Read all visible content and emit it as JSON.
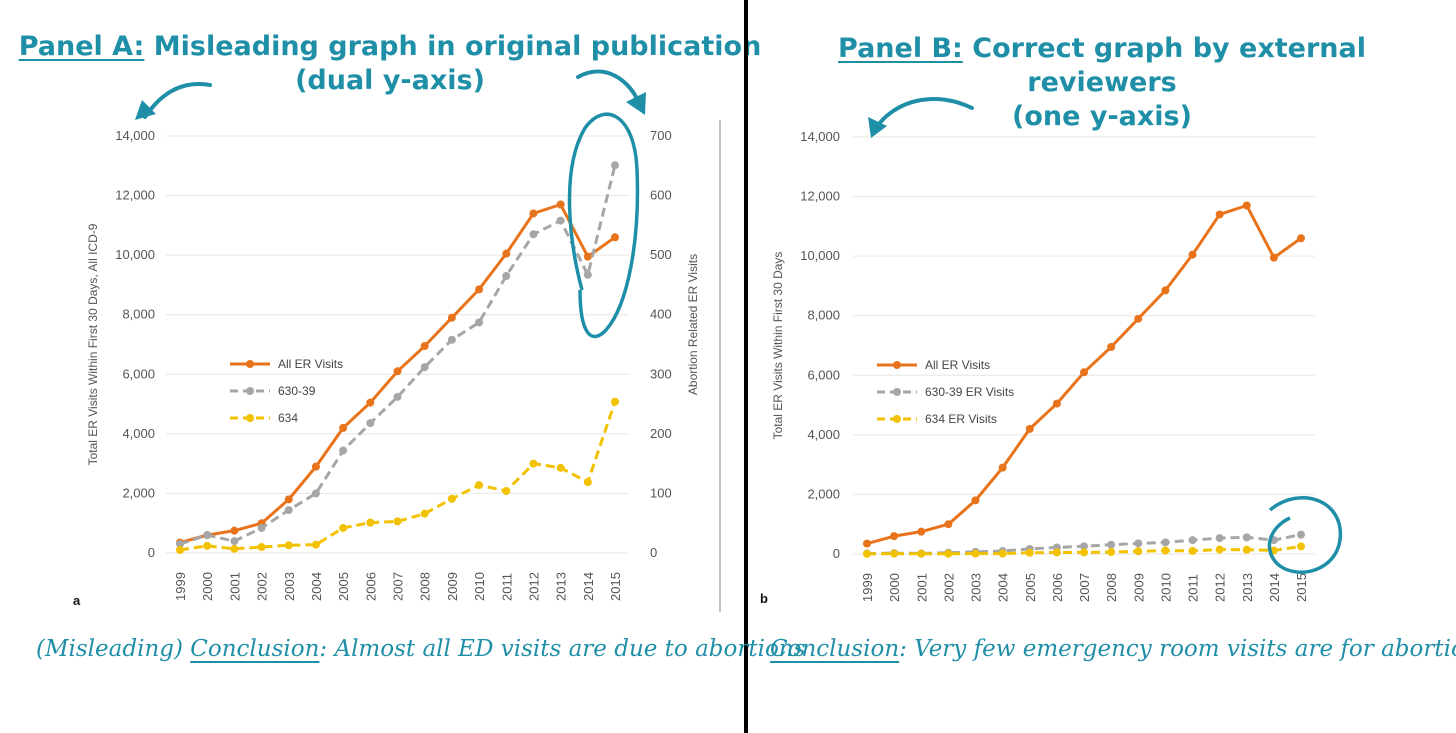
{
  "panelA": {
    "title_prefix": "Panel A:",
    "title_rest": " Misleading graph in original publication",
    "title_line2": "(dual y-axis)",
    "conclusion_prefix": "(Misleading) ",
    "conclusion_word": "Conclusion",
    "conclusion_rest": ": Almost all ED visits are due to abortions"
  },
  "panelB": {
    "title_prefix": "Panel B:",
    "title_rest": " Correct graph by external reviewers",
    "title_line2": "(one y-axis)",
    "conclusion_word": "Conclusion",
    "conclusion_rest": ": Very few emergency room visits are for abortion"
  },
  "colors": {
    "accent": "#1f8fa8",
    "all_er": "#e8731a",
    "c630": "#a6a6a6",
    "c634": "#f2c200"
  },
  "chart_data": [
    {
      "type": "line",
      "panel_letter": "a",
      "x": [
        "1999",
        "2000",
        "2001",
        "2002",
        "2003",
        "2004",
        "2005",
        "2006",
        "2007",
        "2008",
        "2009",
        "2010",
        "2011",
        "2012",
        "2013",
        "2014",
        "2015"
      ],
      "ylabel": "Total ER Visits Within First 30 Days, All ICD-9",
      "y2label": "Abortion Related ER Visits",
      "ylim": [
        0,
        14000
      ],
      "y2lim": [
        0,
        700
      ],
      "yticks": [
        "0",
        "2,000",
        "4,000",
        "6,000",
        "8,000",
        "10,000",
        "12,000",
        "14,000"
      ],
      "y2ticks": [
        "0",
        "100",
        "200",
        "300",
        "400",
        "500",
        "600",
        "700"
      ],
      "legend_position": "left-middle",
      "series": [
        {
          "name": "All ER Visits",
          "axis": "left",
          "style": "solid",
          "color": "#e8731a",
          "values": [
            350,
            600,
            750,
            1000,
            1800,
            2900,
            4200,
            5050,
            6100,
            6950,
            7900,
            8850,
            10050,
            11400,
            11700,
            9950,
            10600
          ]
        },
        {
          "name": "630-39",
          "axis": "right",
          "style": "dashed",
          "color": "#a6a6a6",
          "values": [
            15,
            30,
            20,
            42,
            72,
            100,
            172,
            218,
            262,
            312,
            358,
            387,
            465,
            535,
            558,
            467,
            651
          ]
        },
        {
          "name": "634",
          "axis": "right",
          "style": "dashed",
          "color": "#f2c200",
          "values": [
            5,
            12,
            7,
            10,
            13,
            14,
            42,
            51,
            53,
            66,
            91,
            114,
            104,
            150,
            143,
            119,
            254
          ]
        }
      ]
    },
    {
      "type": "line",
      "panel_letter": "b",
      "x": [
        "1999",
        "2000",
        "2001",
        "2002",
        "2003",
        "2004",
        "2005",
        "2006",
        "2007",
        "2008",
        "2009",
        "2010",
        "2011",
        "2012",
        "2013",
        "2014",
        "2015"
      ],
      "ylabel": "Total ER Visits Within First 30 Days",
      "ylim": [
        0,
        14000
      ],
      "yticks": [
        "0",
        "2,000",
        "4,000",
        "6,000",
        "8,000",
        "10,000",
        "12,000",
        "14,000"
      ],
      "legend_position": "left-middle",
      "series": [
        {
          "name": "All ER Visits",
          "style": "solid",
          "color": "#e8731a",
          "values": [
            350,
            600,
            750,
            1000,
            1800,
            2900,
            4200,
            5050,
            6100,
            6950,
            7900,
            8850,
            10050,
            11400,
            11700,
            9950,
            10600
          ]
        },
        {
          "name": "630-39 ER Visits",
          "style": "dashed",
          "color": "#a6a6a6",
          "values": [
            15,
            30,
            20,
            42,
            72,
            100,
            172,
            218,
            262,
            312,
            358,
            387,
            465,
            535,
            558,
            467,
            651
          ]
        },
        {
          "name": "634 ER Visits",
          "style": "dashed",
          "color": "#f2c200",
          "values": [
            5,
            12,
            7,
            10,
            13,
            14,
            42,
            51,
            53,
            66,
            91,
            114,
            104,
            150,
            143,
            119,
            254
          ]
        }
      ]
    }
  ]
}
